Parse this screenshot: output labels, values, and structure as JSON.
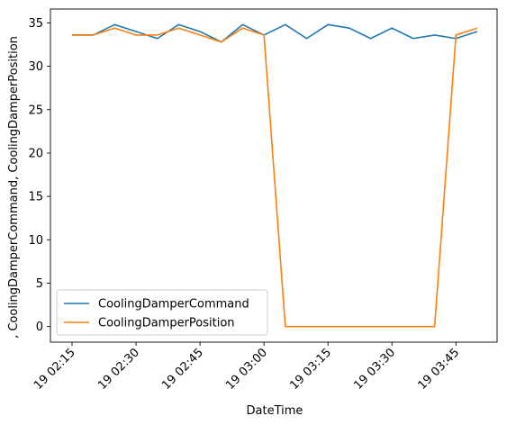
{
  "chart_data": {
    "type": "line",
    "xlabel": "DateTime",
    "ylabel": ", CoolingDamperCommand, CoolingDamperPosition",
    "x": [
      "19 02:15",
      "19 02:20",
      "19 02:25",
      "19 02:30",
      "19 02:35",
      "19 02:40",
      "19 02:45",
      "19 02:50",
      "19 02:55",
      "19 03:00",
      "19 03:05",
      "19 03:10",
      "19 03:15",
      "19 03:20",
      "19 03:25",
      "19 03:30",
      "19 03:35",
      "19 03:40",
      "19 03:45",
      "19 03:50"
    ],
    "x_ticks": [
      "19 02:15",
      "19 02:30",
      "19 02:45",
      "19 03:00",
      "19 03:15",
      "19 03:30",
      "19 03:45"
    ],
    "y_ticks": [
      0,
      5,
      10,
      15,
      20,
      25,
      30,
      35
    ],
    "ylim": [
      -1.8,
      36.6
    ],
    "grid": false,
    "legend_position": "lower-left",
    "series": [
      {
        "name": "CoolingDamperCommand",
        "color": "#1f77b4",
        "values": [
          33.6,
          33.6,
          34.8,
          34.0,
          33.2,
          34.8,
          34.0,
          32.8,
          34.8,
          33.6,
          34.8,
          33.2,
          34.8,
          34.4,
          33.2,
          34.4,
          33.2,
          33.6,
          33.2,
          34.0
        ]
      },
      {
        "name": "CoolingDamperPosition",
        "color": "#ff7f0e",
        "values": [
          33.6,
          33.6,
          34.4,
          33.6,
          33.6,
          34.4,
          33.6,
          32.8,
          34.4,
          33.6,
          0,
          0,
          0,
          0,
          0,
          0,
          0,
          0,
          33.6,
          34.4
        ]
      }
    ]
  }
}
